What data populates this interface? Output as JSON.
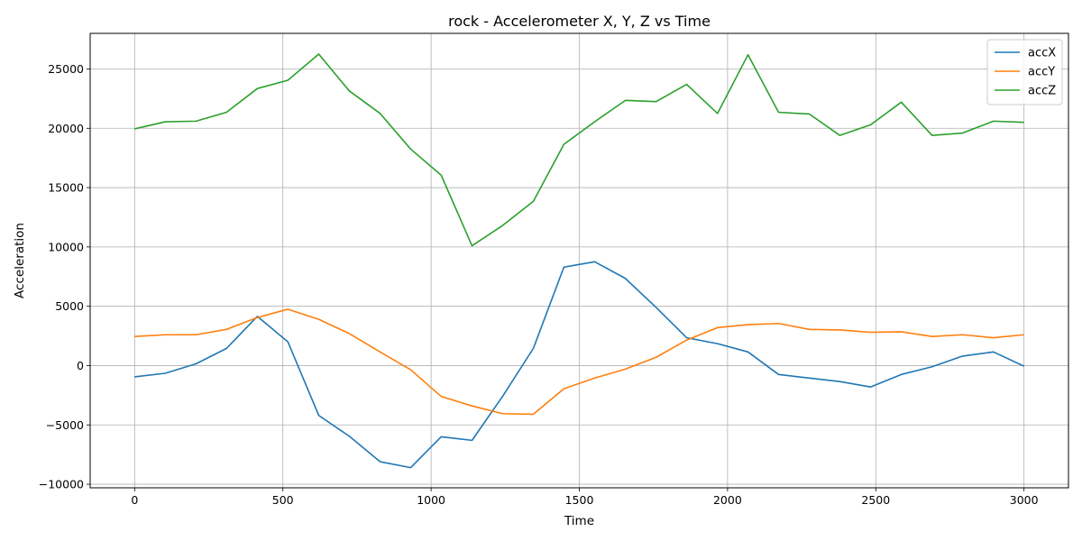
{
  "chart_data": {
    "type": "line",
    "title": "rock - Accelerometer X, Y, Z vs Time",
    "xlabel": "Time",
    "ylabel": "Acceleration",
    "xlim": [
      -150,
      3150
    ],
    "ylim": [
      -10300,
      28000
    ],
    "xticks": [
      0,
      500,
      1000,
      1500,
      2000,
      2500,
      3000
    ],
    "yticks": [
      -10000,
      -5000,
      0,
      5000,
      10000,
      15000,
      20000,
      25000
    ],
    "grid": true,
    "legend_position": "top-right",
    "x": [
      0,
      103,
      207,
      310,
      414,
      517,
      621,
      724,
      828,
      931,
      1034,
      1138,
      1241,
      1345,
      1448,
      1552,
      1655,
      1759,
      1862,
      1966,
      2069,
      2172,
      2276,
      2379,
      2483,
      2586,
      2690,
      2793,
      2897,
      3000
    ],
    "series": [
      {
        "name": "accX",
        "color": "#1f77b4",
        "values": [
          -950,
          -650,
          150,
          1450,
          4150,
          2000,
          -4200,
          -5950,
          -8100,
          -8600,
          -6000,
          -6300,
          -2600,
          1450,
          8300,
          8750,
          7350,
          4900,
          2350,
          1850,
          1150,
          -750,
          -1050,
          -1350,
          -1800,
          -750,
          -100,
          800,
          1150,
          -50
        ]
      },
      {
        "name": "accY",
        "color": "#ff7f0e",
        "values": [
          2450,
          2600,
          2600,
          3050,
          4050,
          4750,
          3900,
          2700,
          1150,
          -350,
          -2600,
          -3400,
          -4050,
          -4100,
          -1950,
          -1050,
          -300,
          700,
          2150,
          3200,
          3450,
          3550,
          3050,
          3000,
          2800,
          2850,
          2450,
          2600,
          2350,
          2600
        ]
      },
      {
        "name": "accZ",
        "color": "#2ca02c",
        "values": [
          19950,
          20550,
          20600,
          21350,
          23350,
          24050,
          26250,
          23150,
          21250,
          18250,
          16050,
          10100,
          11800,
          13850,
          18650,
          20550,
          22350,
          22250,
          23700,
          21250,
          26200,
          21350,
          21200,
          19400,
          20300,
          22200,
          19400,
          19600,
          20600,
          20500
        ]
      }
    ]
  }
}
